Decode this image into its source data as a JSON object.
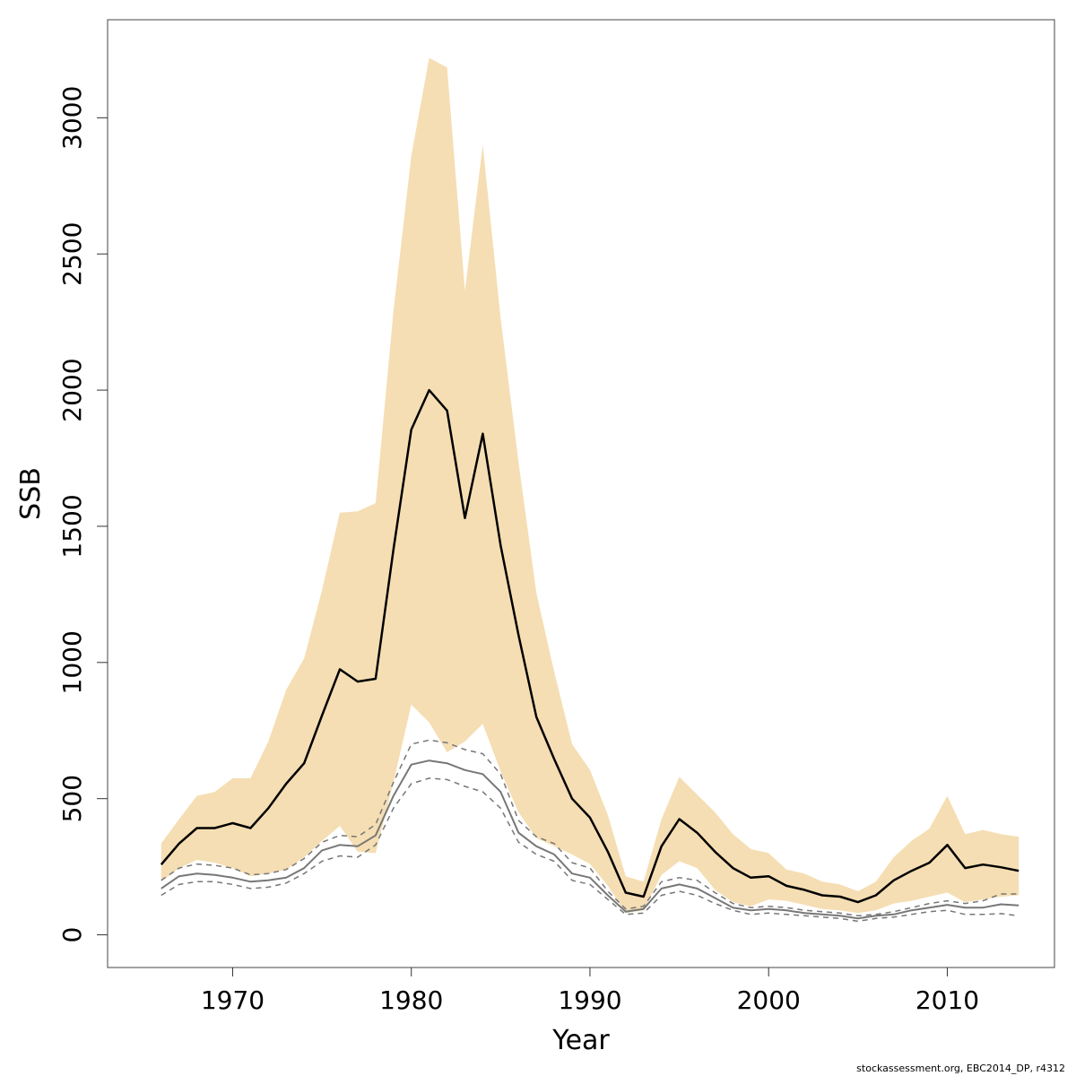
{
  "chart_data": {
    "type": "line",
    "xlabel": "Year",
    "ylabel": "SSB",
    "xlim": [
      1963,
      2016
    ],
    "ylim": [
      -120,
      3360
    ],
    "x_ticks": [
      1970,
      1980,
      1990,
      2000,
      2010
    ],
    "x_tick_labels": [
      "1970",
      "1980",
      "1990",
      "2000",
      "2010"
    ],
    "y_ticks": [
      0,
      500,
      1000,
      1500,
      2000,
      2500,
      3000
    ],
    "y_tick_labels": [
      "0",
      "500",
      "1000",
      "1500",
      "2000",
      "2500",
      "3000"
    ],
    "grid": false,
    "legend": "none",
    "colors": {
      "band": "#f5deb3",
      "main": "#000000",
      "secondary": "#777777",
      "secondary_ci": "#777777"
    },
    "x": [
      1966,
      1967,
      1968,
      1969,
      1970,
      1971,
      1972,
      1973,
      1974,
      1975,
      1976,
      1977,
      1978,
      1979,
      1980,
      1981,
      1982,
      1983,
      1984,
      1985,
      1986,
      1987,
      1988,
      1989,
      1990,
      1991,
      1992,
      1993,
      1994,
      1995,
      1996,
      1997,
      1998,
      1999,
      2000,
      2001,
      2002,
      2003,
      2004,
      2005,
      2006,
      2007,
      2008,
      2009,
      2010,
      2011,
      2012,
      2013,
      2014
    ],
    "series": [
      {
        "role": "ci_upper",
        "values": [
          335,
          425,
          510,
          525,
          575,
          575,
          710,
          900,
          1015,
          1265,
          1550,
          1555,
          1585,
          2290,
          2860,
          3220,
          3185,
          2365,
          2900,
          2265,
          1735,
          1255,
          965,
          700,
          605,
          440,
          215,
          195,
          425,
          580,
          515,
          450,
          370,
          315,
          300,
          240,
          225,
          195,
          185,
          160,
          195,
          285,
          345,
          390,
          510,
          370,
          385,
          370,
          360
        ]
      },
      {
        "role": "ci_lower",
        "values": [
          195,
          245,
          275,
          265,
          245,
          215,
          225,
          240,
          285,
          345,
          400,
          305,
          300,
          560,
          845,
          780,
          670,
          710,
          775,
          600,
          450,
          355,
          325,
          295,
          260,
          180,
          80,
          90,
          220,
          270,
          245,
          165,
          120,
          105,
          130,
          125,
          110,
          95,
          90,
          80,
          90,
          115,
          125,
          140,
          155,
          120,
          130,
          140,
          145
        ]
      },
      {
        "role": "estimate",
        "values": [
          258,
          335,
          392,
          392,
          410,
          392,
          465,
          555,
          630,
          805,
          975,
          930,
          940,
          1415,
          1855,
          2000,
          1925,
          1530,
          1840,
          1430,
          1100,
          800,
          645,
          500,
          430,
          305,
          155,
          140,
          325,
          425,
          375,
          305,
          245,
          210,
          215,
          180,
          165,
          145,
          140,
          120,
          145,
          200,
          235,
          265,
          330,
          245,
          258,
          248,
          235
        ]
      },
      {
        "role": "secondary_upper",
        "values": [
          200,
          245,
          260,
          255,
          245,
          220,
          225,
          240,
          280,
          340,
          365,
          360,
          405,
          560,
          700,
          715,
          705,
          680,
          665,
          590,
          420,
          360,
          335,
          265,
          245,
          160,
          95,
          105,
          195,
          210,
          200,
          155,
          115,
          100,
          105,
          100,
          90,
          85,
          80,
          70,
          75,
          85,
          100,
          115,
          125,
          115,
          125,
          150,
          150
        ]
      },
      {
        "role": "secondary",
        "values": [
          170,
          215,
          225,
          220,
          210,
          195,
          200,
          210,
          245,
          310,
          330,
          325,
          365,
          510,
          625,
          640,
          630,
          605,
          590,
          525,
          375,
          325,
          295,
          225,
          210,
          145,
          85,
          95,
          170,
          185,
          170,
          135,
          100,
          90,
          95,
          90,
          80,
          75,
          70,
          60,
          70,
          75,
          90,
          100,
          110,
          100,
          100,
          112,
          108
        ]
      },
      {
        "role": "secondary_lower",
        "values": [
          145,
          185,
          195,
          195,
          185,
          170,
          175,
          190,
          225,
          270,
          290,
          285,
          330,
          465,
          555,
          575,
          570,
          545,
          525,
          465,
          340,
          295,
          270,
          200,
          185,
          130,
          75,
          80,
          145,
          160,
          145,
          115,
          90,
          75,
          80,
          75,
          70,
          65,
          60,
          50,
          60,
          65,
          75,
          85,
          90,
          75,
          75,
          78,
          70
        ]
      }
    ]
  },
  "footer": "stockassessment.org, EBC2014_DP, r4312"
}
